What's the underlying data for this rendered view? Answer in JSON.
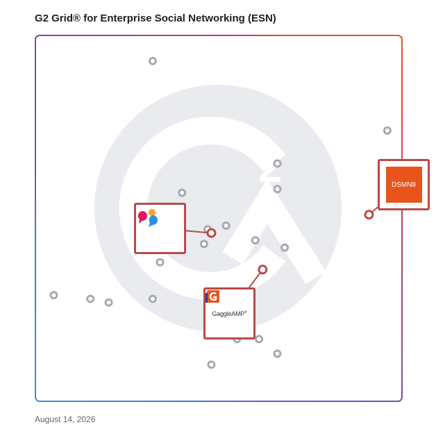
{
  "title": "G2 Grid® for Enterprise Social Networking (ESN)",
  "date": "August 14, 2026",
  "colors": {
    "grid_gradient": [
      "#3a7bd5",
      "#6a4fb3",
      "#c2415a",
      "#e8541b"
    ],
    "dot": "#a7a9b3",
    "highlight": "#b94a4a",
    "watermark": "#e9ebef"
  },
  "products": {
    "gaggleamp": {
      "name": "GaggleAMP",
      "icon": "gaggleamp-logo"
    },
    "dsmn8": {
      "name": "DSMN8",
      "icon": "dsmn8-logo"
    },
    "unnamed": {
      "icon": "chat-bubbles-logo"
    }
  },
  "chart_data": {
    "type": "scatter",
    "title": "G2 Grid® for Enterprise Social Networking (ESN)",
    "xlabel": "",
    "ylabel": "",
    "xlim": [
      0,
      100
    ],
    "ylim": [
      0,
      100
    ],
    "quadrant_split": {
      "x": 50,
      "y": 50
    },
    "grid": false,
    "points": [
      {
        "x": 32,
        "y": 93
      },
      {
        "x": 96,
        "y": 74
      },
      {
        "x": 66,
        "y": 65
      },
      {
        "x": 66,
        "y": 58
      },
      {
        "x": 40,
        "y": 57
      },
      {
        "x": 47,
        "y": 47
      },
      {
        "x": 52,
        "y": 48
      },
      {
        "x": 60,
        "y": 44
      },
      {
        "x": 68,
        "y": 42
      },
      {
        "x": 46,
        "y": 43
      },
      {
        "x": 34,
        "y": 38
      },
      {
        "x": 5,
        "y": 29
      },
      {
        "x": 15,
        "y": 28
      },
      {
        "x": 20,
        "y": 27
      },
      {
        "x": 32,
        "y": 28
      },
      {
        "x": 55,
        "y": 17
      },
      {
        "x": 61,
        "y": 17
      },
      {
        "x": 66,
        "y": 13
      },
      {
        "x": 48,
        "y": 10
      }
    ],
    "highlighted": [
      {
        "product": "unnamed",
        "x": 48,
        "y": 46
      },
      {
        "product": "gaggleamp",
        "x": 62,
        "y": 36
      },
      {
        "product": "dsmn8",
        "x": 91,
        "y": 51
      }
    ]
  }
}
